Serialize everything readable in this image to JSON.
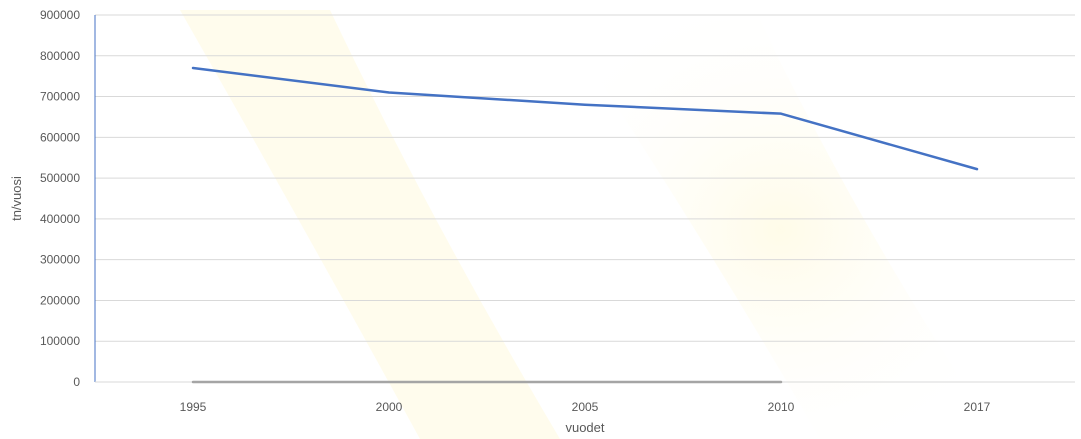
{
  "chart_data": {
    "type": "line",
    "categories": [
      "1995",
      "2000",
      "2005",
      "2010",
      "2017"
    ],
    "series": [
      {
        "values": [
          770000,
          710000,
          680000,
          658000,
          522000
        ],
        "color": "#4472C4"
      },
      {
        "values": [
          0,
          0,
          0,
          0,
          null
        ],
        "color": "#A5A5A5"
      }
    ],
    "title": "",
    "xlabel": "vuodet",
    "ylabel": "tn/vuosi",
    "ylim": [
      0,
      900000
    ],
    "yticks": [
      "0",
      "100000",
      "200000",
      "300000",
      "400000",
      "500000",
      "600000",
      "700000",
      "800000",
      "900000"
    ],
    "grid": true,
    "legend": "none"
  }
}
